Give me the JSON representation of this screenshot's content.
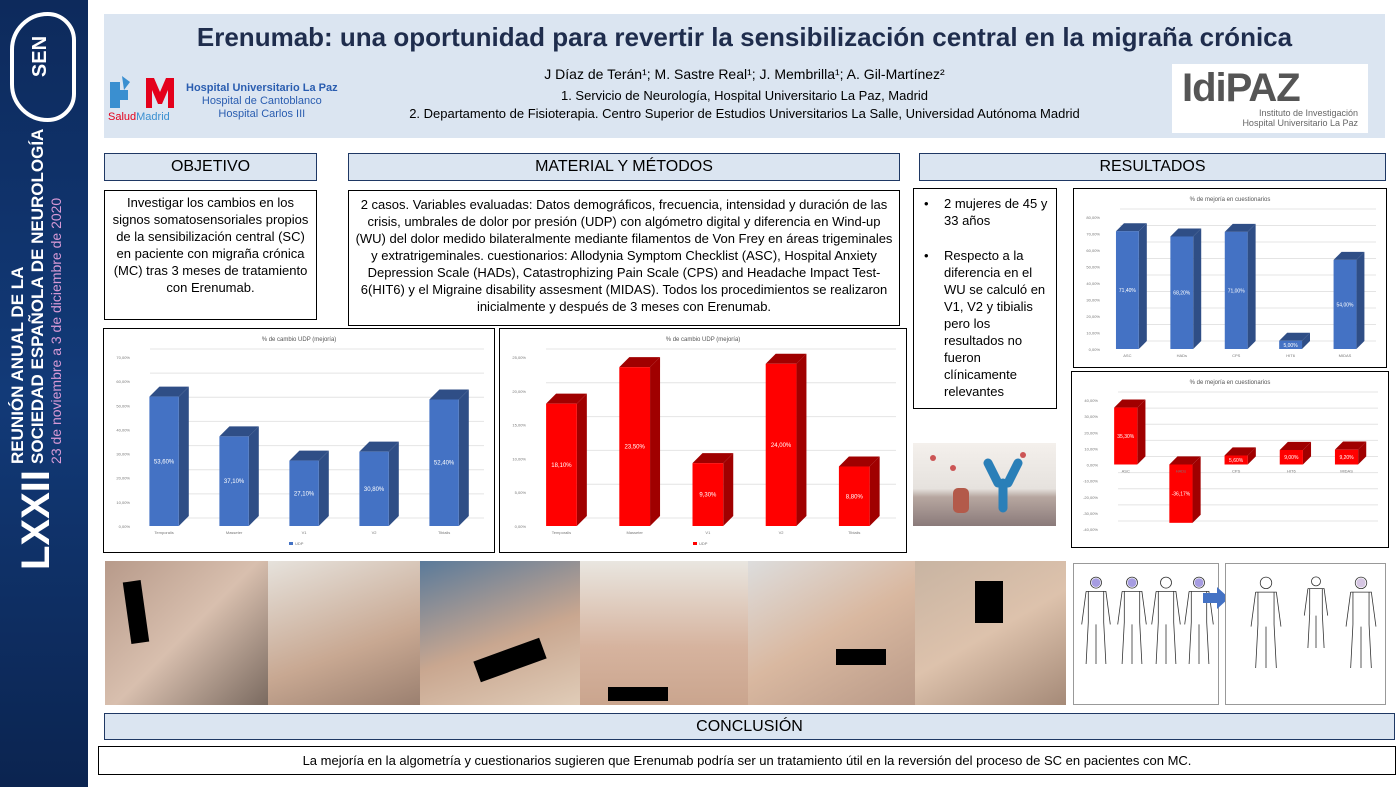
{
  "sidebar": {
    "logo_text": "SEN",
    "edition": "LXXII",
    "line1": "REUNIÓN ANUAL DE LA",
    "line2": "SOCIEDAD ESPAÑOLA DE NEUROLOGÍA",
    "dates": "23 de noviembre a 3 de diciembre de 2020"
  },
  "header": {
    "title": "Erenumab: una oportunidad para revertir la sensibilización central en la migraña crónica",
    "authors": "J Díaz de Terán¹; M. Sastre Real¹; J. Membrilla¹; A. Gil-Martínez²",
    "affiliation1": "1. Servicio de Neurología, Hospital Universitario La Paz, Madrid",
    "affiliation2": "2. Departamento de Fisioterapia. Centro Superior de Estudios Universitarios La Salle, Universidad Autónoma Madrid",
    "salud_logo": "SaludMadrid",
    "hospitals": [
      "Hospital Universitario La Paz",
      "Hospital de Cantoblanco",
      "Hospital Carlos III"
    ],
    "idipaz_logo": "IdiPAZ",
    "idipaz_sub1": "Instituto de Investigación",
    "idipaz_sub2": "Hospital Universitario La Paz"
  },
  "sections": {
    "objetivo": "OBJETIVO",
    "metodos": "MATERIAL Y MÉTODOS",
    "resultados": "RESULTADOS",
    "conclusion": "CONCLUSIÓN"
  },
  "objetivo_text": "Investigar los cambios  en los signos somatosensoriales propios de la sensibilización central (SC) en paciente con migraña crónica (MC) tras 3 meses de tratamiento  con Erenumab.",
  "metodos_text": "2 casos. Variables evaluadas: Datos demográficos, frecuencia, intensidad y duración de las crisis, umbrales de dolor por presión (UDP) con algómetro digital y diferencia en  Wind-up (WU) del dolor medido bilateralmente mediante filamentos de Von Frey en áreas trigeminales y extratrigeminales.  cuestionarios: Allodynia Symptom Checklist (ASC), Hospital Anxiety Depression Scale (HADs), Catastrophizing Pain Scale (CPS) and Headache Impact Test-6(HIT6) y el Migraine disability assesment (MIDAS). Todos los procedimientos se realizaron inicialmente y después de 3 meses  con Erenumab.",
  "resultados_bullets": [
    "2 mujeres de 45 y 33 años",
    "Respecto a la diferencia en el WU se calculó en V1, V2 y tibialis pero los resultados no fueron clínicamente relevantes"
  ],
  "conclusion_text": "La mejoría  en la algometría y cuestionarios  sugieren que Erenumab podría ser un tratamiento útil en la reversión del proceso de SC en pacientes con MC.",
  "chart_data": [
    {
      "id": "c1",
      "type": "bar",
      "title": "% de cambio UDP (mejoría)",
      "categories": [
        "Temporalis",
        "Masseter",
        "V1",
        "V2",
        "Tibialis"
      ],
      "values": [
        53.6,
        37.1,
        27.1,
        30.8,
        52.4
      ],
      "labels": [
        "53,60%",
        "37,10%",
        "27,10%",
        "30,80%",
        "52,40%"
      ],
      "ylim": [
        0,
        70
      ],
      "ystep": 10,
      "legend": "UDP",
      "legend_position": "bottom",
      "color": "#4472c4",
      "side": "#2f4e86"
    },
    {
      "id": "c2",
      "type": "bar",
      "title": "% de cambio UDP (mejoría)",
      "categories": [
        "Temporalis",
        "Masseter",
        "V1",
        "V2",
        "Tibialis"
      ],
      "values": [
        18.1,
        23.5,
        9.3,
        24.0,
        8.8
      ],
      "labels": [
        "18,10%",
        "23,50%",
        "9,30%",
        "24,00%",
        "8,80%"
      ],
      "ylim": [
        0,
        25
      ],
      "ystep": 5,
      "legend": "UDP",
      "legend_position": "bottom",
      "color": "#ff0000",
      "side": "#a00000"
    },
    {
      "id": "c3",
      "type": "bar",
      "title": "% de mejoría en cuestionarios",
      "categories": [
        "ASC",
        "HADs",
        "CPS",
        "HIT6",
        "MIDAS"
      ],
      "values": [
        71.4,
        68.2,
        71.0,
        5.0,
        54.0
      ],
      "labels": [
        "71,40%",
        "68,20%",
        "71,00%",
        "5,00%",
        "54,00%"
      ],
      "ylim": [
        0,
        80
      ],
      "ystep": 10,
      "color": "#4472c4",
      "side": "#2f4e86"
    },
    {
      "id": "c4",
      "type": "bar",
      "title": "% de mejoría en cuestionarios",
      "categories": [
        "ASC",
        "HADs",
        "CPS",
        "HIT6",
        "MIDAS"
      ],
      "values": [
        35.3,
        -36.17,
        5.6,
        9.0,
        9.2
      ],
      "labels": [
        "35,30%",
        "-36,17%",
        "5,60%",
        "9,00%",
        "9,20%"
      ],
      "ylim": [
        -40,
        40
      ],
      "ystep": 10,
      "color": "#ff0000",
      "side": "#a00000"
    }
  ]
}
